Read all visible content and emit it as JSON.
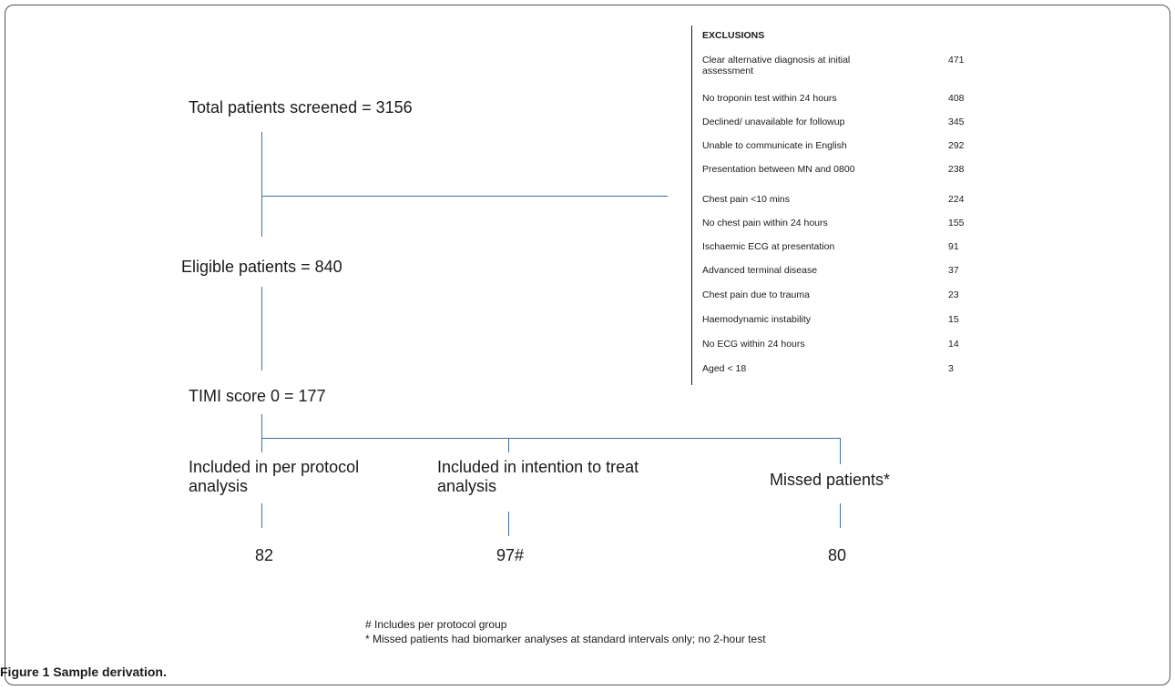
{
  "flow": {
    "screened": "Total patients screened = 3156",
    "eligible": "Eligible patients = 840",
    "timi": "TIMI score 0 = 177",
    "per_protocol": "Included in per protocol analysis",
    "intention": "Included in intention to treat analysis",
    "missed": "Missed patients*",
    "per_protocol_n": "82",
    "intention_n": "97#",
    "missed_n": "80"
  },
  "exclusions": {
    "title": "EXCLUSIONS",
    "items": [
      {
        "label": "Clear alternative diagnosis at initial assessment",
        "value": "471"
      },
      {
        "label": "No troponin test within 24 hours",
        "value": "408"
      },
      {
        "label": "Declined/ unavailable for followup",
        "value": "345"
      },
      {
        "label": "Unable to communicate in English",
        "value": "292"
      },
      {
        "label": "Presentation between MN and 0800",
        "value": "238"
      },
      {
        "label": "Chest pain <10 mins",
        "value": "224"
      },
      {
        "label": "No chest pain within 24 hours",
        "value": "155"
      },
      {
        "label": "Ischaemic ECG at presentation",
        "value": "91"
      },
      {
        "label": "Advanced terminal disease",
        "value": "37"
      },
      {
        "label": "Chest pain due to trauma",
        "value": "23"
      },
      {
        "label": "Haemodynamic instability",
        "value": "15"
      },
      {
        "label": "No ECG within 24 hours",
        "value": "14"
      },
      {
        "label": "Aged < 18",
        "value": "3"
      }
    ]
  },
  "footnotes": {
    "hash": "# Includes per protocol group",
    "star": "* Missed patients had biomarker analyses at standard intervals only; no 2-hour test"
  },
  "caption": "Figure 1 Sample derivation."
}
